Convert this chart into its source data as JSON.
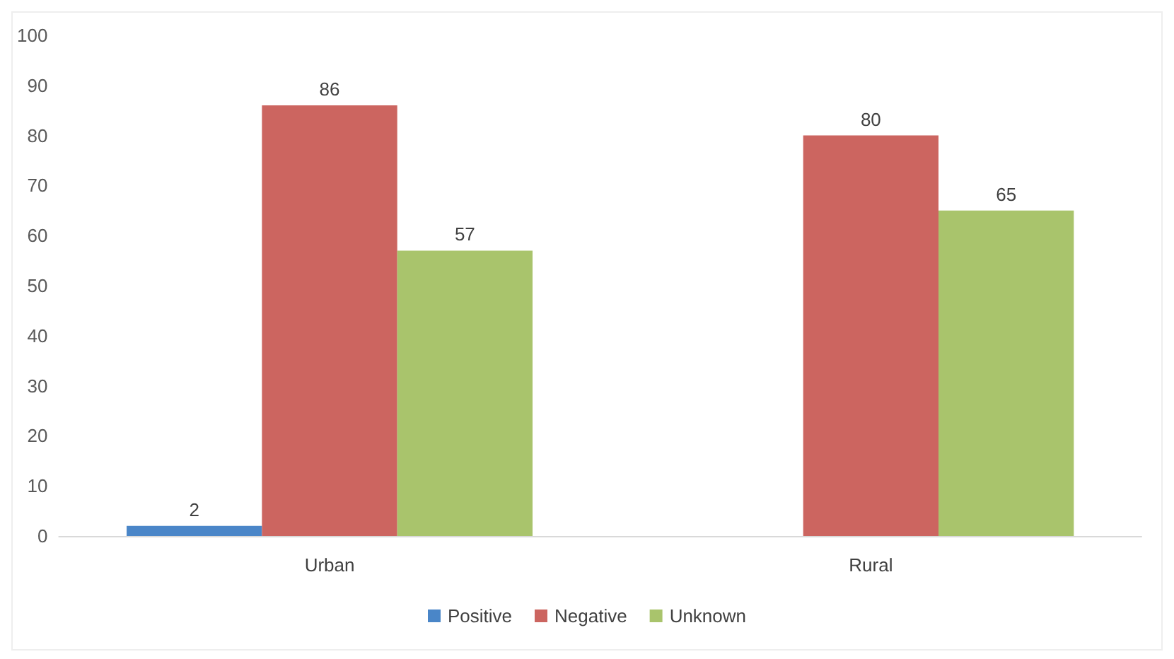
{
  "chart_data": {
    "type": "bar",
    "categories": [
      "Urban",
      "Rural"
    ],
    "series": [
      {
        "name": "Positive",
        "color": "#4a86c8",
        "values": [
          2,
          null
        ]
      },
      {
        "name": "Negative",
        "color": "#cc6560",
        "values": [
          86,
          80
        ]
      },
      {
        "name": "Unknown",
        "color": "#a9c46c",
        "values": [
          57,
          65
        ]
      }
    ],
    "ylim": [
      0,
      100
    ],
    "yticks": [
      0,
      10,
      20,
      30,
      40,
      50,
      60,
      70,
      80,
      90,
      100
    ],
    "grid": false,
    "legend": "bottom",
    "data_labels": true
  }
}
